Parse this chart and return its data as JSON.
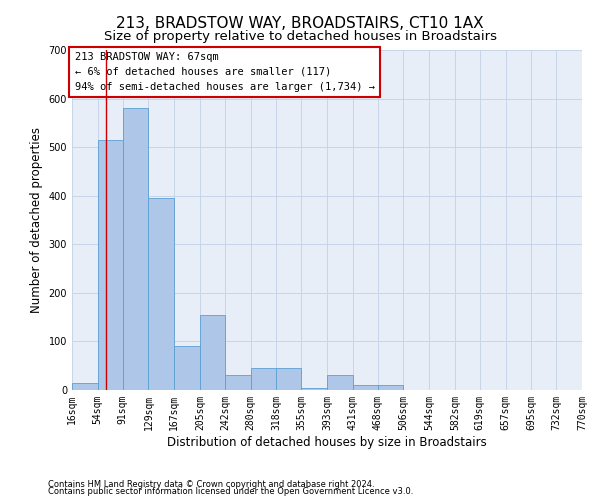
{
  "title": "213, BRADSTOW WAY, BROADSTAIRS, CT10 1AX",
  "subtitle": "Size of property relative to detached houses in Broadstairs",
  "xlabel": "Distribution of detached houses by size in Broadstairs",
  "ylabel": "Number of detached properties",
  "footnote1": "Contains HM Land Registry data © Crown copyright and database right 2024.",
  "footnote2": "Contains public sector information licensed under the Open Government Licence v3.0.",
  "annotation_title": "213 BRADSTOW WAY: 67sqm",
  "annotation_line1": "← 6% of detached houses are smaller (117)",
  "annotation_line2": "94% of semi-detached houses are larger (1,734) →",
  "bin_edges": [
    16,
    54,
    91,
    129,
    167,
    205,
    242,
    280,
    318,
    355,
    393,
    431,
    468,
    506,
    544,
    582,
    619,
    657,
    695,
    732,
    770
  ],
  "bar_heights": [
    15,
    515,
    580,
    395,
    90,
    155,
    30,
    45,
    45,
    5,
    30,
    10,
    10,
    0,
    0,
    0,
    0,
    0,
    0,
    0
  ],
  "bar_color": "#aec6e8",
  "bar_edge_color": "#5a9fd4",
  "vline_color": "#cc0000",
  "vline_x": 67,
  "annotation_box_color": "#cc0000",
  "ylim": [
    0,
    700
  ],
  "yticks": [
    0,
    100,
    200,
    300,
    400,
    500,
    600,
    700
  ],
  "grid_color": "#c8d4e8",
  "bg_color": "#e8eef8",
  "title_fontsize": 11,
  "subtitle_fontsize": 9.5,
  "xlabel_fontsize": 8.5,
  "ylabel_fontsize": 8.5,
  "tick_fontsize": 7,
  "annotation_fontsize": 7.5,
  "footnote_fontsize": 6
}
